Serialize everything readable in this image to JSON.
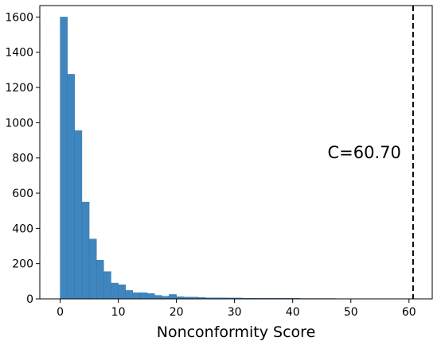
{
  "chart_data": {
    "type": "bar",
    "title": "",
    "xlabel": "Nonconformity Score",
    "ylabel": "",
    "xlim": [
      -3.5,
      64.0
    ],
    "ylim": [
      0,
      1665
    ],
    "grid": false,
    "bin_width": 1.25,
    "bins_start": 0,
    "values": [
      1600,
      1275,
      955,
      550,
      340,
      220,
      155,
      90,
      80,
      48,
      35,
      35,
      30,
      20,
      15,
      25,
      12,
      10,
      10,
      8,
      6,
      6,
      6,
      5,
      5,
      4,
      4,
      3,
      3,
      3,
      3,
      3,
      3,
      2,
      2,
      2,
      2,
      2,
      1,
      1
    ],
    "x_ticks": [
      0,
      10,
      20,
      30,
      40,
      50,
      60
    ],
    "y_ticks": [
      0,
      200,
      400,
      600,
      800,
      1000,
      1200,
      1400,
      1600
    ],
    "threshold": {
      "value": 60.7,
      "label": "C=60.70",
      "style": "dashed",
      "color": "#000000"
    },
    "annotation_y": 830,
    "bar_color": "#3f86bf",
    "bar_edge_color": "#2f6fa6"
  }
}
